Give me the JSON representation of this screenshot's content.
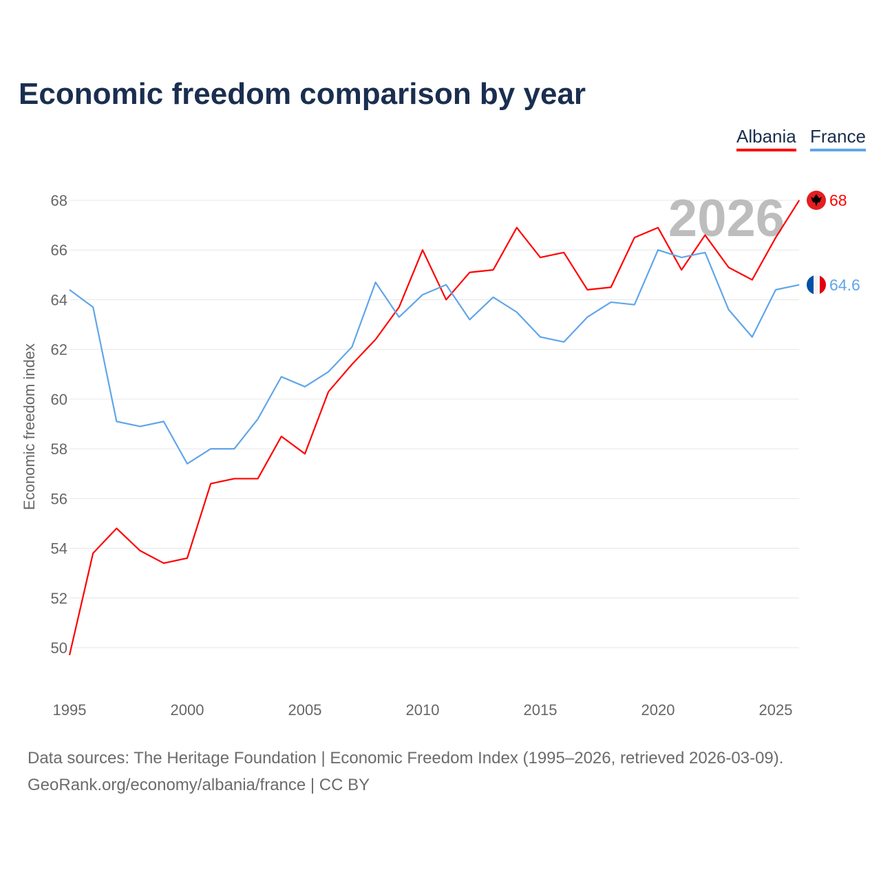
{
  "chart_data": {
    "type": "line",
    "title": "Economic freedom comparison by year",
    "xlabel": "",
    "ylabel": "Economic freedom index",
    "year_watermark": "2026",
    "x": [
      1995,
      1996,
      1997,
      1998,
      1999,
      2000,
      2001,
      2002,
      2003,
      2004,
      2005,
      2006,
      2007,
      2008,
      2009,
      2010,
      2011,
      2012,
      2013,
      2014,
      2015,
      2016,
      2017,
      2018,
      2019,
      2020,
      2021,
      2022,
      2023,
      2024,
      2025,
      2026
    ],
    "xticks": [
      1995,
      2000,
      2005,
      2010,
      2015,
      2020,
      2025
    ],
    "yticks": [
      50,
      52,
      54,
      56,
      58,
      60,
      62,
      64,
      66,
      68
    ],
    "xlim": [
      1995,
      2026
    ],
    "ylim": [
      48.5,
      68.5
    ],
    "grid": true,
    "legend_position": "top-right",
    "series": [
      {
        "name": "Albania",
        "color": "#ff0000",
        "end_label": "68",
        "flag": "albania-flag",
        "values": [
          49.7,
          53.8,
          54.8,
          53.9,
          53.4,
          53.6,
          56.6,
          56.8,
          56.8,
          58.5,
          57.8,
          60.3,
          61.4,
          62.4,
          63.7,
          66.0,
          64.0,
          65.1,
          65.2,
          66.9,
          65.7,
          65.9,
          64.4,
          64.5,
          66.5,
          66.9,
          65.2,
          66.6,
          65.3,
          64.8,
          66.5,
          68.0
        ]
      },
      {
        "name": "France",
        "color": "#60a5ea",
        "end_label": "64.6",
        "flag": "france-flag",
        "values": [
          64.4,
          63.7,
          59.1,
          58.9,
          59.1,
          57.4,
          58.0,
          58.0,
          59.2,
          60.9,
          60.5,
          61.1,
          62.1,
          64.7,
          63.3,
          64.2,
          64.6,
          63.2,
          64.1,
          63.5,
          62.5,
          62.3,
          63.3,
          63.9,
          63.8,
          66.0,
          65.7,
          65.9,
          63.6,
          62.5,
          64.4,
          64.6
        ]
      }
    ]
  },
  "footer": {
    "line1": "Data sources: The Heritage Foundation | Economic Freedom Index (1995–2026, retrieved 2026-03-09).",
    "line2": "GeoRank.org/economy/albania/france | CC BY"
  }
}
